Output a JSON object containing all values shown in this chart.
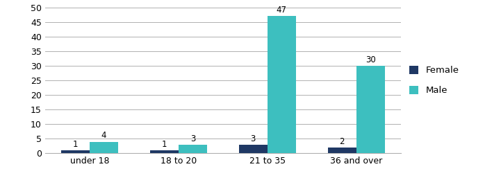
{
  "categories": [
    "under 18",
    "18 to 20",
    "21 to 35",
    "36 and over"
  ],
  "female_values": [
    1,
    1,
    3,
    2
  ],
  "male_values": [
    4,
    3,
    47,
    30
  ],
  "female_color": "#1F3864",
  "male_color": "#3DBFBF",
  "female_label": "Female",
  "male_label": "Male",
  "ylim": [
    0,
    50
  ],
  "yticks": [
    0,
    5,
    10,
    15,
    20,
    25,
    30,
    35,
    40,
    45,
    50
  ],
  "bar_width": 0.32,
  "background_color": "#ffffff",
  "grid_color": "#b0b0b0",
  "label_fontsize": 8.5,
  "tick_fontsize": 9,
  "legend_fontsize": 9.5
}
